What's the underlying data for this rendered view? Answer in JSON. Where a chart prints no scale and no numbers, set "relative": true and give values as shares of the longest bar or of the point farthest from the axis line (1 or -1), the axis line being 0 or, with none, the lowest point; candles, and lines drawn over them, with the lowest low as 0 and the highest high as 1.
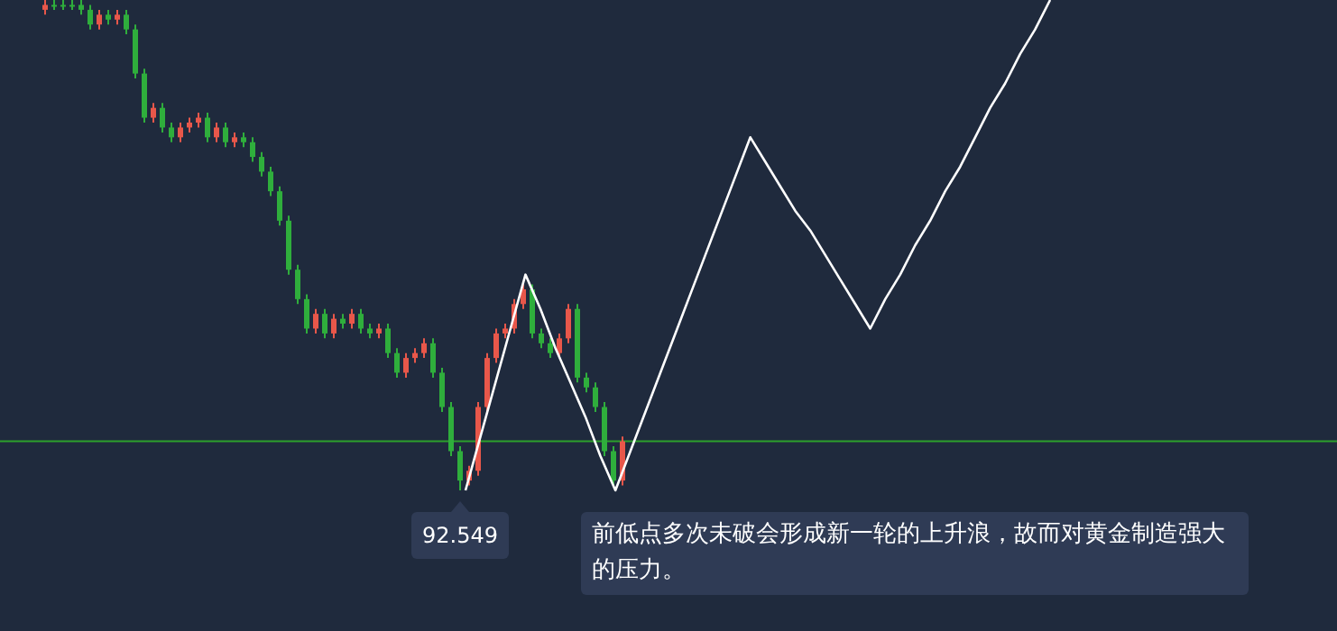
{
  "chart_data": [
    {
      "type": "candlestick",
      "relative": true,
      "categories": [
        null,
        null,
        null,
        null,
        null,
        null,
        null,
        null,
        null,
        null,
        null,
        null,
        null,
        null,
        null,
        null,
        null,
        null,
        null,
        null,
        null,
        null,
        null,
        null,
        null,
        null,
        null,
        null,
        null,
        null,
        null,
        null,
        null,
        null,
        null,
        null,
        null,
        null,
        null,
        null,
        null,
        null,
        null,
        null,
        null,
        null,
        null,
        null,
        null,
        null,
        null,
        null,
        null,
        null,
        null,
        null,
        null,
        null,
        null,
        null,
        null,
        null,
        null,
        null,
        null
      ],
      "ohlc": [
        [
          0.98,
          1,
          0.97,
          0.99
        ],
        [
          0.99,
          1,
          0.98,
          0.99
        ],
        [
          0.99,
          1,
          0.98,
          0.99
        ],
        [
          0.99,
          1,
          0.98,
          0.99
        ],
        [
          0.99,
          1,
          0.97,
          0.98
        ],
        [
          0.98,
          0.99,
          0.94,
          0.95
        ],
        [
          0.95,
          0.98,
          0.94,
          0.97
        ],
        [
          0.97,
          0.98,
          0.95,
          0.96
        ],
        [
          0.96,
          0.98,
          0.95,
          0.97
        ],
        [
          0.97,
          0.98,
          0.93,
          0.94
        ],
        [
          0.94,
          0.95,
          0.84,
          0.85
        ],
        [
          0.85,
          0.86,
          0.75,
          0.76
        ],
        [
          0.76,
          0.79,
          0.75,
          0.78
        ],
        [
          0.78,
          0.79,
          0.73,
          0.74
        ],
        [
          0.74,
          0.75,
          0.71,
          0.72
        ],
        [
          0.72,
          0.75,
          0.71,
          0.74
        ],
        [
          0.74,
          0.76,
          0.73,
          0.75
        ],
        [
          0.75,
          0.77,
          0.74,
          0.76
        ],
        [
          0.76,
          0.77,
          0.71,
          0.72
        ],
        [
          0.72,
          0.75,
          0.71,
          0.74
        ],
        [
          0.74,
          0.75,
          0.7,
          0.71
        ],
        [
          0.71,
          0.73,
          0.7,
          0.72
        ],
        [
          0.72,
          0.73,
          0.7,
          0.71
        ],
        [
          0.71,
          0.72,
          0.67,
          0.68
        ],
        [
          0.68,
          0.69,
          0.64,
          0.65
        ],
        [
          0.65,
          0.66,
          0.6,
          0.61
        ],
        [
          0.61,
          0.62,
          0.54,
          0.55
        ],
        [
          0.55,
          0.56,
          0.44,
          0.45
        ],
        [
          0.45,
          0.46,
          0.38,
          0.39
        ],
        [
          0.39,
          0.4,
          0.32,
          0.33
        ],
        [
          0.33,
          0.37,
          0.32,
          0.36
        ],
        [
          0.36,
          0.37,
          0.31,
          0.32
        ],
        [
          0.32,
          0.36,
          0.31,
          0.35
        ],
        [
          0.35,
          0.36,
          0.33,
          0.34
        ],
        [
          0.34,
          0.37,
          0.33,
          0.36
        ],
        [
          0.36,
          0.37,
          0.32,
          0.33
        ],
        [
          0.33,
          0.34,
          0.31,
          0.32
        ],
        [
          0.32,
          0.34,
          0.31,
          0.33
        ],
        [
          0.33,
          0.34,
          0.27,
          0.28
        ],
        [
          0.28,
          0.29,
          0.23,
          0.24
        ],
        [
          0.24,
          0.28,
          0.23,
          0.27
        ],
        [
          0.27,
          0.29,
          0.26,
          0.28
        ],
        [
          0.28,
          0.31,
          0.27,
          0.3
        ],
        [
          0.3,
          0.31,
          0.23,
          0.24
        ],
        [
          0.24,
          0.25,
          0.16,
          0.17
        ],
        [
          0.17,
          0.18,
          0.07,
          0.08
        ],
        [
          0.08,
          0.09,
          0,
          0.02
        ],
        [
          0.02,
          0.05,
          0.01,
          0.04
        ],
        [
          0.04,
          0.18,
          0.03,
          0.17
        ],
        [
          0.17,
          0.28,
          0.16,
          0.27
        ],
        [
          0.27,
          0.33,
          0.26,
          0.32
        ],
        [
          0.32,
          0.34,
          0.31,
          0.33
        ],
        [
          0.33,
          0.39,
          0.32,
          0.38
        ],
        [
          0.38,
          0.42,
          0.37,
          0.41
        ],
        [
          0.41,
          0.42,
          0.31,
          0.32
        ],
        [
          0.32,
          0.33,
          0.29,
          0.3
        ],
        [
          0.3,
          0.31,
          0.27,
          0.28
        ],
        [
          0.28,
          0.32,
          0.27,
          0.31
        ],
        [
          0.31,
          0.38,
          0.3,
          0.37
        ],
        [
          0.37,
          0.38,
          0.22,
          0.23
        ],
        [
          0.23,
          0.24,
          0.2,
          0.21
        ],
        [
          0.21,
          0.22,
          0.16,
          0.17
        ],
        [
          0.17,
          0.18,
          0.07,
          0.08
        ],
        [
          0.08,
          0.09,
          0.01,
          0.02
        ],
        [
          0.02,
          0.11,
          0.01,
          0.1
        ]
      ],
      "colors": [
        "#e8574a",
        "#2fae3c",
        "#2fae3c",
        "#2fae3c",
        "#2fae3c",
        "#2fae3c",
        "#e8574a",
        "#2fae3c",
        "#e8574a",
        "#2fae3c",
        "#2fae3c",
        "#2fae3c",
        "#e8574a",
        "#2fae3c",
        "#2fae3c",
        "#e8574a",
        "#e8574a",
        "#e8574a",
        "#2fae3c",
        "#e8574a",
        "#2fae3c",
        "#e8574a",
        "#2fae3c",
        "#2fae3c",
        "#2fae3c",
        "#2fae3c",
        "#2fae3c",
        "#2fae3c",
        "#2fae3c",
        "#2fae3c",
        "#e8574a",
        "#2fae3c",
        "#e8574a",
        "#2fae3c",
        "#e8574a",
        "#2fae3c",
        "#2fae3c",
        "#e8574a",
        "#2fae3c",
        "#2fae3c",
        "#e8574a",
        "#e8574a",
        "#e8574a",
        "#2fae3c",
        "#2fae3c",
        "#2fae3c",
        "#2fae3c",
        "#e8574a",
        "#e8574a",
        "#e8574a",
        "#e8574a",
        "#e8574a",
        "#e8574a",
        "#e8574a",
        "#2fae3c",
        "#2fae3c",
        "#2fae3c",
        "#e8574a",
        "#e8574a",
        "#2fae3c",
        "#2fae3c",
        "#2fae3c",
        "#2fae3c",
        "#2fae3c",
        "#e8574a"
      ],
      "ref_lines": [
        {
          "axis": "y",
          "value": 0.1,
          "color": "#2ca02c"
        }
      ],
      "annotations": [
        "92.549",
        "前低点多次未破会形成新一轮的上升浪，故而对黄金制造强大的压力。"
      ]
    },
    {
      "type": "line",
      "relative": true,
      "categories": [
        null,
        null,
        null,
        null,
        null,
        null,
        null,
        null,
        null,
        null,
        null,
        null,
        null,
        null,
        null,
        null,
        null,
        null,
        null,
        null,
        null,
        null,
        null,
        null,
        null,
        null,
        null,
        null,
        null,
        null,
        null,
        null,
        null,
        null,
        null,
        null,
        null,
        null,
        null,
        null
      ],
      "series": [
        {
          "color": "#ffffff",
          "values": [
            0,
            0.11,
            0.22,
            0.33,
            0.44,
            0.37,
            0.29,
            0.22,
            0.15,
            0.07,
            0,
            0.08,
            0.16,
            0.24,
            0.32,
            0.4,
            0.48,
            0.56,
            0.64,
            0.72,
            0.67,
            0.62,
            0.57,
            0.53,
            0.48,
            0.43,
            0.38,
            0.33,
            0.39,
            0.44,
            0.5,
            0.55,
            0.61,
            0.66,
            0.72,
            0.78,
            0.83,
            0.89,
            0.94,
            1
          ]
        }
      ]
    }
  ]
}
